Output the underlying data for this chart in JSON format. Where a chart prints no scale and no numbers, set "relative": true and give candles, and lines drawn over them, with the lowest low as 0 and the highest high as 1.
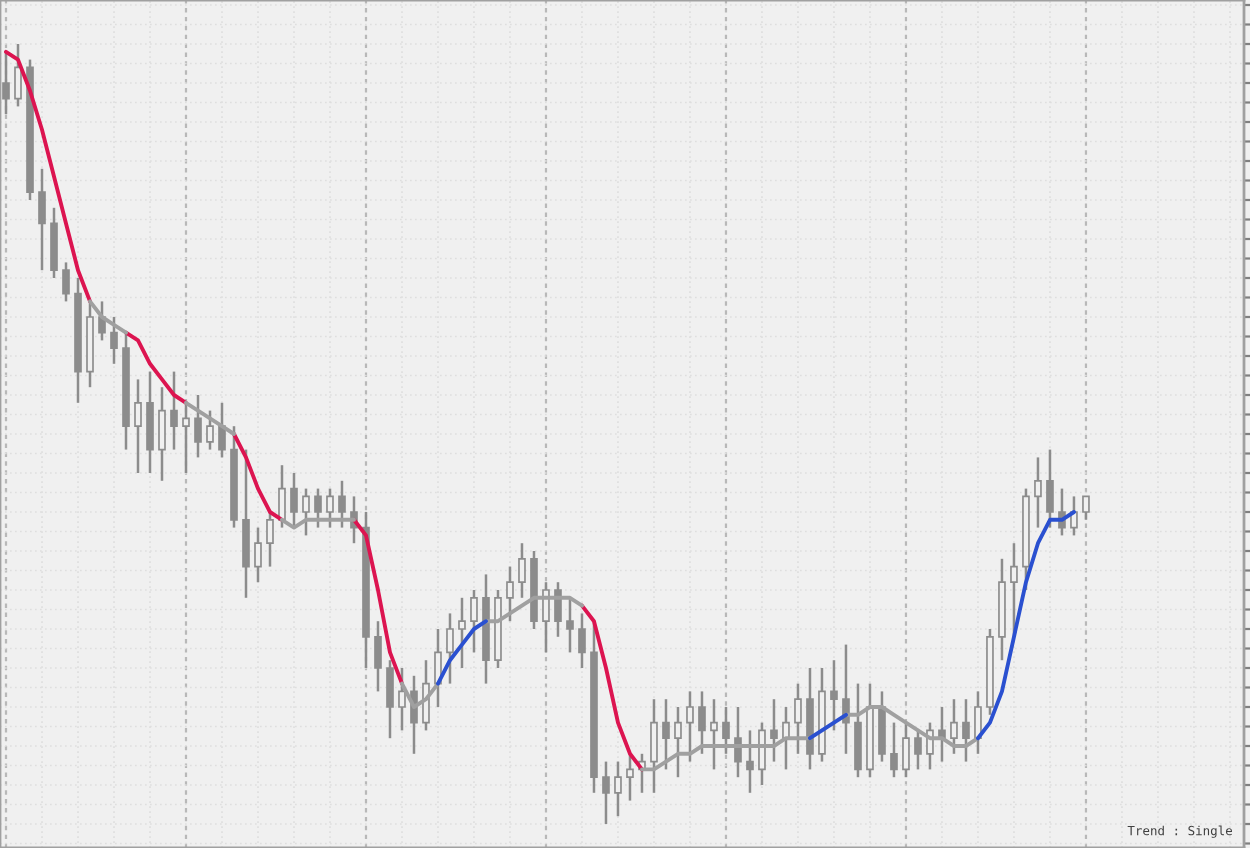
{
  "chart_data": {
    "type": "candlestick",
    "relative": true,
    "grid": true,
    "categories": [
      null,
      null,
      null,
      null,
      null,
      null,
      null,
      null,
      null,
      null,
      null,
      null,
      null,
      null,
      null,
      null,
      null,
      null,
      null,
      null,
      null,
      null,
      null,
      null,
      null,
      null,
      null,
      null,
      null,
      null,
      null,
      null,
      null,
      null,
      null,
      null,
      null,
      null,
      null,
      null,
      null,
      null,
      null,
      null,
      null,
      null,
      null,
      null,
      null,
      null,
      null,
      null,
      null,
      null,
      null,
      null,
      null,
      null,
      null,
      null,
      null,
      null,
      null,
      null,
      null,
      null,
      null,
      null,
      null,
      null,
      null,
      null,
      null,
      null,
      null,
      null,
      null,
      null,
      null,
      null,
      null,
      null,
      null,
      null,
      null,
      null,
      null,
      null,
      null,
      null,
      null
    ],
    "series": [
      {
        "color": "#8c8c8c",
        "ohlc": [
          [
            0.95,
            0.99,
            0.91,
            0.93
          ],
          [
            0.93,
            1.0,
            0.92,
            0.97
          ],
          [
            0.97,
            0.98,
            0.8,
            0.81
          ],
          [
            0.81,
            0.84,
            0.71,
            0.77
          ],
          [
            0.77,
            0.79,
            0.7,
            0.71
          ],
          [
            0.71,
            0.72,
            0.67,
            0.68
          ],
          [
            0.68,
            0.7,
            0.54,
            0.58
          ],
          [
            0.58,
            0.67,
            0.56,
            0.65
          ],
          [
            0.65,
            0.67,
            0.62,
            0.63
          ],
          [
            0.63,
            0.65,
            0.59,
            0.61
          ],
          [
            0.61,
            0.63,
            0.48,
            0.51
          ],
          [
            0.51,
            0.57,
            0.45,
            0.54
          ],
          [
            0.54,
            0.58,
            0.45,
            0.48
          ],
          [
            0.48,
            0.56,
            0.44,
            0.53
          ],
          [
            0.53,
            0.58,
            0.48,
            0.51
          ],
          [
            0.51,
            0.54,
            0.45,
            0.52
          ],
          [
            0.52,
            0.55,
            0.47,
            0.49
          ],
          [
            0.49,
            0.53,
            0.48,
            0.51
          ],
          [
            0.51,
            0.54,
            0.47,
            0.48
          ],
          [
            0.48,
            0.51,
            0.38,
            0.39
          ],
          [
            0.39,
            0.48,
            0.29,
            0.33
          ],
          [
            0.33,
            0.38,
            0.31,
            0.36
          ],
          [
            0.36,
            0.4,
            0.33,
            0.39
          ],
          [
            0.39,
            0.46,
            0.38,
            0.43
          ],
          [
            0.43,
            0.45,
            0.38,
            0.4
          ],
          [
            0.4,
            0.43,
            0.37,
            0.42
          ],
          [
            0.42,
            0.43,
            0.38,
            0.4
          ],
          [
            0.4,
            0.43,
            0.38,
            0.42
          ],
          [
            0.42,
            0.44,
            0.38,
            0.4
          ],
          [
            0.4,
            0.42,
            0.36,
            0.38
          ],
          [
            0.38,
            0.4,
            0.2,
            0.24
          ],
          [
            0.24,
            0.26,
            0.17,
            0.2
          ],
          [
            0.2,
            0.21,
            0.11,
            0.15
          ],
          [
            0.15,
            0.2,
            0.12,
            0.17
          ],
          [
            0.17,
            0.19,
            0.09,
            0.13
          ],
          [
            0.13,
            0.21,
            0.12,
            0.18
          ],
          [
            0.18,
            0.25,
            0.15,
            0.22
          ],
          [
            0.22,
            0.27,
            0.18,
            0.25
          ],
          [
            0.25,
            0.29,
            0.2,
            0.26
          ],
          [
            0.26,
            0.3,
            0.22,
            0.29
          ],
          [
            0.29,
            0.32,
            0.18,
            0.21
          ],
          [
            0.21,
            0.3,
            0.2,
            0.29
          ],
          [
            0.29,
            0.33,
            0.26,
            0.31
          ],
          [
            0.31,
            0.36,
            0.29,
            0.34
          ],
          [
            0.34,
            0.35,
            0.25,
            0.26
          ],
          [
            0.26,
            0.31,
            0.22,
            0.3
          ],
          [
            0.3,
            0.31,
            0.24,
            0.26
          ],
          [
            0.26,
            0.29,
            0.22,
            0.25
          ],
          [
            0.25,
            0.27,
            0.2,
            0.22
          ],
          [
            0.22,
            0.26,
            0.04,
            0.06
          ],
          [
            0.06,
            0.08,
            0.0,
            0.04
          ],
          [
            0.04,
            0.08,
            0.01,
            0.06
          ],
          [
            0.06,
            0.09,
            0.03,
            0.07
          ],
          [
            0.07,
            0.09,
            0.04,
            0.08
          ],
          [
            0.08,
            0.16,
            0.04,
            0.13
          ],
          [
            0.13,
            0.16,
            0.07,
            0.11
          ],
          [
            0.11,
            0.15,
            0.06,
            0.13
          ],
          [
            0.13,
            0.17,
            0.08,
            0.15
          ],
          [
            0.15,
            0.17,
            0.09,
            0.12
          ],
          [
            0.12,
            0.16,
            0.07,
            0.13
          ],
          [
            0.13,
            0.15,
            0.09,
            0.11
          ],
          [
            0.11,
            0.15,
            0.06,
            0.08
          ],
          [
            0.08,
            0.12,
            0.04,
            0.07
          ],
          [
            0.07,
            0.13,
            0.05,
            0.12
          ],
          [
            0.12,
            0.16,
            0.08,
            0.11
          ],
          [
            0.11,
            0.15,
            0.07,
            0.13
          ],
          [
            0.13,
            0.18,
            0.09,
            0.16
          ],
          [
            0.16,
            0.2,
            0.07,
            0.09
          ],
          [
            0.09,
            0.2,
            0.08,
            0.17
          ],
          [
            0.17,
            0.21,
            0.12,
            0.16
          ],
          [
            0.16,
            0.23,
            0.09,
            0.13
          ],
          [
            0.13,
            0.18,
            0.06,
            0.07
          ],
          [
            0.07,
            0.18,
            0.06,
            0.15
          ],
          [
            0.15,
            0.17,
            0.08,
            0.09
          ],
          [
            0.09,
            0.13,
            0.06,
            0.07
          ],
          [
            0.07,
            0.13,
            0.06,
            0.11
          ],
          [
            0.11,
            0.12,
            0.07,
            0.09
          ],
          [
            0.09,
            0.13,
            0.07,
            0.12
          ],
          [
            0.12,
            0.15,
            0.08,
            0.11
          ],
          [
            0.11,
            0.16,
            0.09,
            0.13
          ],
          [
            0.13,
            0.16,
            0.08,
            0.11
          ],
          [
            0.11,
            0.17,
            0.09,
            0.15
          ],
          [
            0.15,
            0.25,
            0.14,
            0.24
          ],
          [
            0.24,
            0.34,
            0.21,
            0.31
          ],
          [
            0.31,
            0.36,
            0.24,
            0.33
          ],
          [
            0.33,
            0.43,
            0.3,
            0.42
          ],
          [
            0.42,
            0.47,
            0.38,
            0.44
          ],
          [
            0.44,
            0.48,
            0.38,
            0.4
          ],
          [
            0.4,
            0.43,
            0.37,
            0.38
          ],
          [
            0.38,
            0.42,
            0.37,
            0.4
          ],
          [
            0.4,
            0.42,
            0.39,
            0.42
          ]
        ]
      },
      {
        "type": "line",
        "color": "#dc1450",
        "values": [
          0.99,
          0.98,
          0.94,
          0.89,
          0.83,
          0.77,
          0.71,
          0.67,
          null,
          null,
          0.63,
          0.62,
          0.59,
          0.57,
          0.55,
          0.54,
          null,
          null,
          null,
          0.5,
          0.47,
          0.43,
          0.4,
          0.39,
          null,
          null,
          null,
          null,
          null,
          0.39,
          0.37,
          0.3,
          0.22,
          0.18,
          null,
          null,
          null,
          null,
          null,
          null,
          null,
          null,
          null,
          null,
          null,
          null,
          null,
          null,
          0.28,
          0.26,
          0.2,
          0.13,
          0.09,
          0.07,
          null,
          null,
          null,
          null,
          null,
          null,
          null,
          null,
          null,
          null,
          null,
          null,
          null,
          null,
          null,
          null,
          null,
          null,
          null,
          null,
          null,
          null,
          null,
          null,
          null,
          null,
          null,
          null,
          null,
          null,
          null,
          null,
          null,
          null,
          null,
          null,
          null
        ]
      },
      {
        "type": "line",
        "color": "#a0a0a0",
        "values": [
          null,
          null,
          null,
          null,
          null,
          null,
          null,
          0.67,
          0.65,
          0.64,
          0.63,
          null,
          null,
          null,
          null,
          0.54,
          0.53,
          0.52,
          0.51,
          0.5,
          null,
          null,
          null,
          0.39,
          0.38,
          0.39,
          0.39,
          0.39,
          0.39,
          0.39,
          null,
          null,
          null,
          0.18,
          0.15,
          0.16,
          0.18,
          null,
          null,
          null,
          0.26,
          0.26,
          0.27,
          0.28,
          0.29,
          0.29,
          0.29,
          0.29,
          0.28,
          null,
          null,
          null,
          null,
          0.07,
          0.07,
          0.08,
          0.09,
          0.09,
          0.1,
          0.1,
          0.1,
          0.1,
          0.1,
          0.1,
          0.1,
          0.11,
          0.11,
          0.11,
          null,
          null,
          0.14,
          0.14,
          0.15,
          0.15,
          0.14,
          0.13,
          0.12,
          0.11,
          0.11,
          0.1,
          0.1,
          0.11,
          null,
          null,
          null,
          null,
          null,
          null,
          null,
          null,
          null
        ]
      },
      {
        "type": "line",
        "color": "#2a50d0",
        "values": [
          null,
          null,
          null,
          null,
          null,
          null,
          null,
          null,
          null,
          null,
          null,
          null,
          null,
          null,
          null,
          null,
          null,
          null,
          null,
          null,
          null,
          null,
          null,
          null,
          null,
          null,
          null,
          null,
          null,
          null,
          null,
          null,
          null,
          null,
          null,
          null,
          0.18,
          0.21,
          0.23,
          0.25,
          0.26,
          null,
          null,
          null,
          null,
          null,
          null,
          null,
          null,
          null,
          null,
          null,
          null,
          null,
          null,
          null,
          null,
          null,
          null,
          null,
          null,
          null,
          null,
          null,
          null,
          null,
          null,
          0.11,
          0.12,
          0.13,
          0.14,
          null,
          null,
          null,
          null,
          null,
          null,
          null,
          null,
          null,
          null,
          0.11,
          0.13,
          0.17,
          0.24,
          0.31,
          0.36,
          0.39,
          0.39,
          0.4,
          null
        ]
      }
    ],
    "annotations": [
      "Trend : Single"
    ]
  }
}
